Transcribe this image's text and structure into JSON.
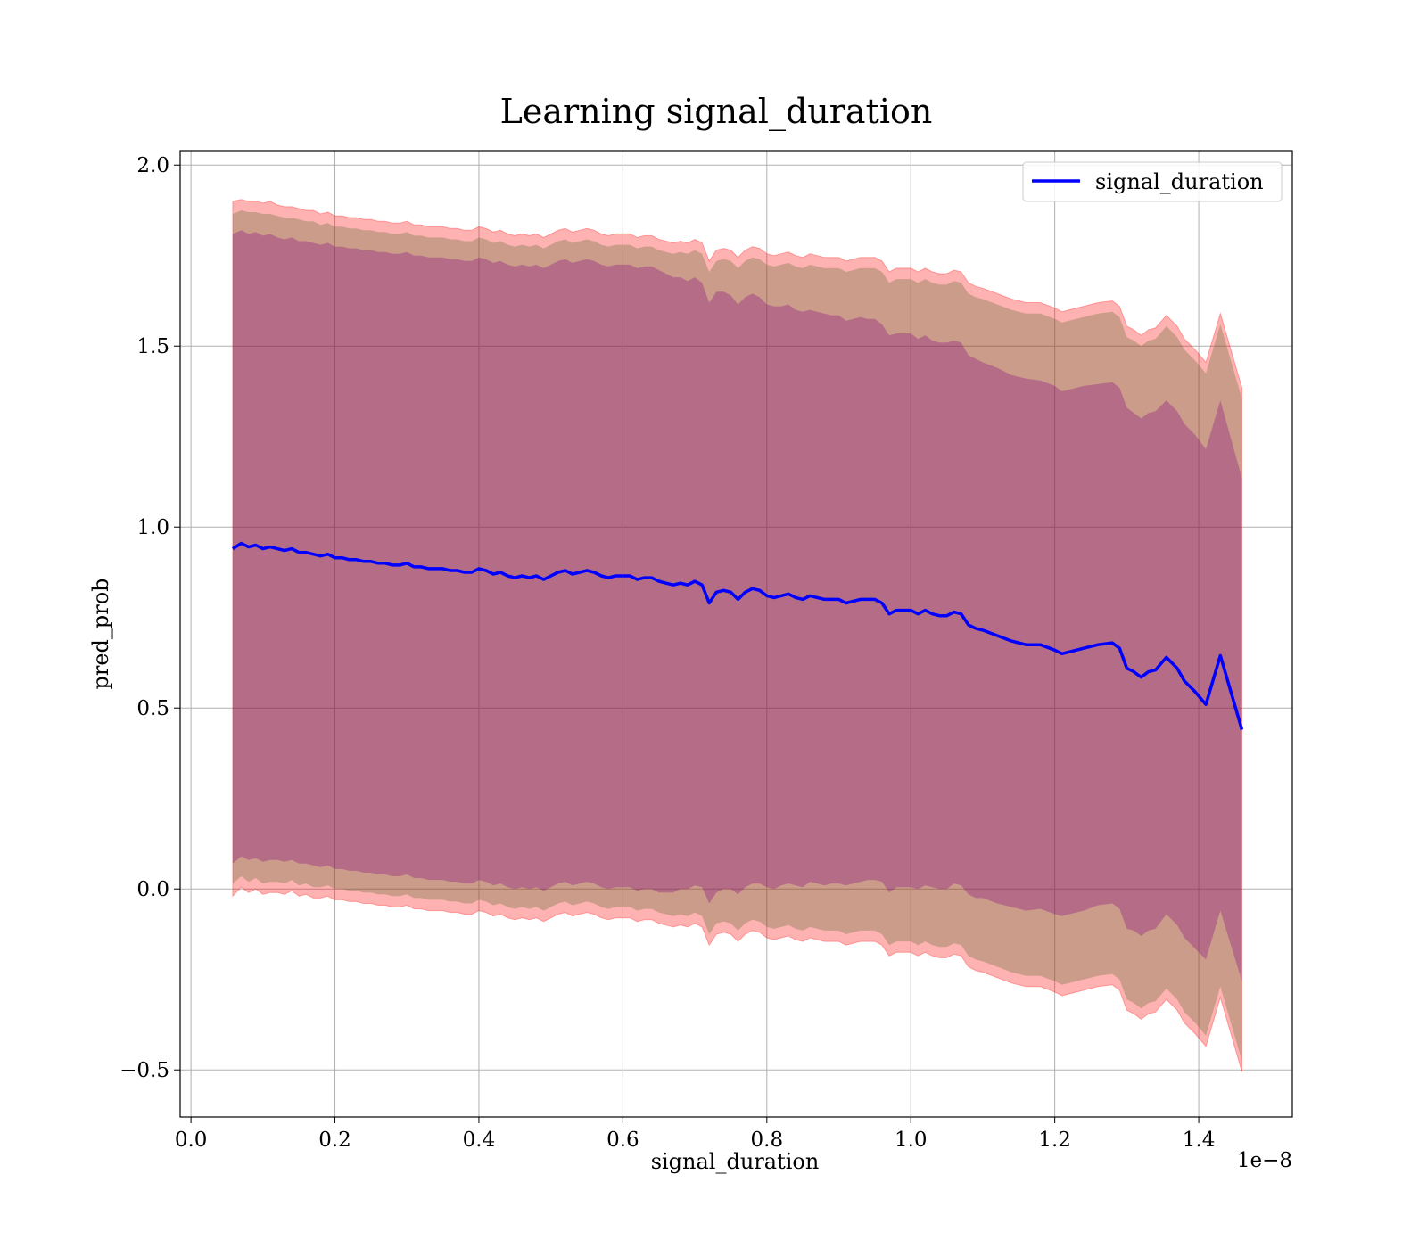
{
  "chart_data": {
    "type": "line",
    "title": "Learning signal_duration",
    "xlabel": "signal_duration",
    "ylabel": "pred_prob",
    "x_offset_text": "1e−8",
    "xlim": [
      -0.015,
      1.53
    ],
    "ylim": [
      -0.63,
      2.04
    ],
    "x_ticks": [
      0.0,
      0.2,
      0.4,
      0.6,
      0.8,
      1.0,
      1.2,
      1.4
    ],
    "x_tick_labels": [
      "0.0",
      "0.2",
      "0.4",
      "0.6",
      "0.8",
      "1.0",
      "1.2",
      "1.4"
    ],
    "y_ticks": [
      -0.5,
      0.0,
      0.5,
      1.0,
      1.5,
      2.0
    ],
    "y_tick_labels": [
      "−0.5",
      "0.0",
      "0.5",
      "1.0",
      "1.5",
      "2.0"
    ],
    "grid": true,
    "legend": {
      "position": "top-right",
      "entries": [
        "signal_duration"
      ]
    },
    "colors": {
      "line": "#0000ff",
      "band_outer": "#ff0000",
      "band_inner": "#556b2f",
      "band_core": "#800080"
    },
    "series": [
      {
        "name": "signal_duration",
        "x": [
          0.058,
          0.07,
          0.08,
          0.09,
          0.1,
          0.11,
          0.12,
          0.13,
          0.14,
          0.15,
          0.16,
          0.17,
          0.18,
          0.19,
          0.2,
          0.21,
          0.22,
          0.23,
          0.24,
          0.25,
          0.26,
          0.27,
          0.28,
          0.29,
          0.3,
          0.31,
          0.32,
          0.33,
          0.34,
          0.35,
          0.36,
          0.37,
          0.38,
          0.39,
          0.4,
          0.41,
          0.42,
          0.43,
          0.44,
          0.45,
          0.46,
          0.47,
          0.48,
          0.49,
          0.5,
          0.51,
          0.52,
          0.53,
          0.54,
          0.55,
          0.56,
          0.57,
          0.58,
          0.59,
          0.6,
          0.61,
          0.62,
          0.63,
          0.64,
          0.65,
          0.66,
          0.67,
          0.68,
          0.69,
          0.7,
          0.71,
          0.72,
          0.73,
          0.74,
          0.75,
          0.76,
          0.77,
          0.78,
          0.79,
          0.8,
          0.81,
          0.82,
          0.83,
          0.84,
          0.85,
          0.86,
          0.87,
          0.88,
          0.89,
          0.9,
          0.91,
          0.92,
          0.93,
          0.94,
          0.95,
          0.96,
          0.97,
          0.98,
          0.99,
          1.0,
          1.01,
          1.02,
          1.03,
          1.04,
          1.05,
          1.06,
          1.07,
          1.08,
          1.09,
          1.1,
          1.12,
          1.14,
          1.16,
          1.18,
          1.2,
          1.21,
          1.22,
          1.24,
          1.26,
          1.28,
          1.29,
          1.3,
          1.31,
          1.32,
          1.33,
          1.34,
          1.355,
          1.37,
          1.38,
          1.395,
          1.41,
          1.43,
          1.46
        ],
        "values": [
          0.94,
          0.955,
          0.945,
          0.95,
          0.94,
          0.945,
          0.94,
          0.935,
          0.94,
          0.93,
          0.93,
          0.925,
          0.92,
          0.925,
          0.915,
          0.915,
          0.91,
          0.91,
          0.905,
          0.905,
          0.9,
          0.9,
          0.895,
          0.895,
          0.9,
          0.89,
          0.89,
          0.885,
          0.885,
          0.885,
          0.88,
          0.88,
          0.875,
          0.875,
          0.885,
          0.88,
          0.87,
          0.875,
          0.865,
          0.86,
          0.865,
          0.86,
          0.865,
          0.855,
          0.865,
          0.875,
          0.88,
          0.87,
          0.875,
          0.88,
          0.875,
          0.865,
          0.86,
          0.865,
          0.865,
          0.865,
          0.855,
          0.86,
          0.86,
          0.85,
          0.845,
          0.84,
          0.845,
          0.84,
          0.85,
          0.84,
          0.79,
          0.82,
          0.825,
          0.82,
          0.8,
          0.82,
          0.83,
          0.825,
          0.81,
          0.805,
          0.81,
          0.815,
          0.805,
          0.8,
          0.81,
          0.805,
          0.8,
          0.8,
          0.8,
          0.79,
          0.795,
          0.8,
          0.8,
          0.8,
          0.79,
          0.76,
          0.77,
          0.77,
          0.77,
          0.76,
          0.77,
          0.76,
          0.755,
          0.755,
          0.765,
          0.76,
          0.73,
          0.72,
          0.715,
          0.7,
          0.685,
          0.675,
          0.675,
          0.66,
          0.65,
          0.655,
          0.665,
          0.675,
          0.68,
          0.665,
          0.61,
          0.6,
          0.585,
          0.6,
          0.605,
          0.64,
          0.61,
          0.575,
          0.545,
          0.51,
          0.645,
          0.44
        ],
        "band_outer_upper": [
          1.9,
          1.905,
          1.9,
          1.9,
          1.895,
          1.9,
          1.89,
          1.885,
          1.885,
          1.88,
          1.875,
          1.875,
          1.865,
          1.87,
          1.86,
          1.86,
          1.855,
          1.855,
          1.85,
          1.85,
          1.845,
          1.845,
          1.84,
          1.84,
          1.845,
          1.835,
          1.835,
          1.83,
          1.83,
          1.83,
          1.825,
          1.825,
          1.82,
          1.82,
          1.83,
          1.825,
          1.815,
          1.82,
          1.81,
          1.805,
          1.81,
          1.805,
          1.81,
          1.8,
          1.81,
          1.82,
          1.825,
          1.815,
          1.82,
          1.825,
          1.82,
          1.81,
          1.805,
          1.81,
          1.81,
          1.81,
          1.8,
          1.805,
          1.805,
          1.795,
          1.79,
          1.785,
          1.79,
          1.785,
          1.795,
          1.785,
          1.735,
          1.765,
          1.77,
          1.765,
          1.745,
          1.765,
          1.775,
          1.77,
          1.755,
          1.75,
          1.755,
          1.76,
          1.75,
          1.745,
          1.755,
          1.75,
          1.745,
          1.745,
          1.745,
          1.735,
          1.74,
          1.745,
          1.745,
          1.745,
          1.735,
          1.705,
          1.715,
          1.715,
          1.715,
          1.705,
          1.715,
          1.705,
          1.7,
          1.7,
          1.71,
          1.705,
          1.675,
          1.665,
          1.66,
          1.645,
          1.63,
          1.62,
          1.62,
          1.605,
          1.595,
          1.6,
          1.61,
          1.62,
          1.625,
          1.61,
          1.555,
          1.545,
          1.53,
          1.545,
          1.55,
          1.585,
          1.555,
          1.52,
          1.49,
          1.455,
          1.59,
          1.385
        ],
        "band_outer_lower": [
          -0.02,
          0.005,
          -0.01,
          0.0,
          -0.015,
          -0.01,
          -0.01,
          -0.015,
          -0.005,
          -0.02,
          -0.015,
          -0.025,
          -0.025,
          -0.02,
          -0.03,
          -0.03,
          -0.035,
          -0.035,
          -0.04,
          -0.04,
          -0.045,
          -0.045,
          -0.05,
          -0.05,
          -0.045,
          -0.055,
          -0.055,
          -0.06,
          -0.06,
          -0.06,
          -0.065,
          -0.065,
          -0.07,
          -0.07,
          -0.06,
          -0.065,
          -0.075,
          -0.07,
          -0.08,
          -0.085,
          -0.08,
          -0.085,
          -0.08,
          -0.09,
          -0.08,
          -0.07,
          -0.065,
          -0.075,
          -0.07,
          -0.065,
          -0.07,
          -0.08,
          -0.085,
          -0.08,
          -0.08,
          -0.08,
          -0.09,
          -0.085,
          -0.085,
          -0.095,
          -0.1,
          -0.105,
          -0.1,
          -0.105,
          -0.095,
          -0.105,
          -0.155,
          -0.125,
          -0.12,
          -0.125,
          -0.145,
          -0.125,
          -0.115,
          -0.12,
          -0.135,
          -0.14,
          -0.135,
          -0.13,
          -0.14,
          -0.145,
          -0.135,
          -0.14,
          -0.145,
          -0.145,
          -0.145,
          -0.155,
          -0.15,
          -0.145,
          -0.145,
          -0.145,
          -0.155,
          -0.185,
          -0.175,
          -0.175,
          -0.175,
          -0.185,
          -0.175,
          -0.185,
          -0.19,
          -0.19,
          -0.18,
          -0.185,
          -0.215,
          -0.225,
          -0.23,
          -0.245,
          -0.26,
          -0.27,
          -0.27,
          -0.285,
          -0.295,
          -0.29,
          -0.28,
          -0.27,
          -0.265,
          -0.28,
          -0.335,
          -0.345,
          -0.36,
          -0.345,
          -0.34,
          -0.305,
          -0.335,
          -0.37,
          -0.4,
          -0.435,
          -0.3,
          -0.505
        ],
        "band_inner_upper": [
          1.865,
          1.875,
          1.87,
          1.87,
          1.865,
          1.865,
          1.86,
          1.855,
          1.855,
          1.85,
          1.845,
          1.845,
          1.835,
          1.84,
          1.83,
          1.83,
          1.825,
          1.825,
          1.82,
          1.82,
          1.815,
          1.815,
          1.81,
          1.81,
          1.815,
          1.805,
          1.805,
          1.8,
          1.8,
          1.8,
          1.795,
          1.795,
          1.79,
          1.79,
          1.8,
          1.795,
          1.785,
          1.79,
          1.78,
          1.775,
          1.78,
          1.775,
          1.78,
          1.77,
          1.78,
          1.79,
          1.795,
          1.785,
          1.79,
          1.795,
          1.79,
          1.78,
          1.775,
          1.78,
          1.78,
          1.78,
          1.77,
          1.775,
          1.775,
          1.765,
          1.76,
          1.755,
          1.76,
          1.755,
          1.765,
          1.755,
          1.705,
          1.735,
          1.74,
          1.735,
          1.715,
          1.735,
          1.745,
          1.74,
          1.725,
          1.72,
          1.725,
          1.73,
          1.72,
          1.715,
          1.725,
          1.72,
          1.715,
          1.715,
          1.715,
          1.705,
          1.71,
          1.715,
          1.715,
          1.715,
          1.705,
          1.675,
          1.685,
          1.685,
          1.685,
          1.675,
          1.685,
          1.675,
          1.67,
          1.67,
          1.68,
          1.675,
          1.645,
          1.635,
          1.63,
          1.615,
          1.6,
          1.59,
          1.59,
          1.575,
          1.565,
          1.57,
          1.58,
          1.59,
          1.595,
          1.58,
          1.525,
          1.515,
          1.5,
          1.515,
          1.52,
          1.555,
          1.525,
          1.49,
          1.46,
          1.425,
          1.56,
          1.355
        ],
        "band_inner_lower": [
          0.015,
          0.035,
          0.02,
          0.03,
          0.015,
          0.02,
          0.02,
          0.015,
          0.025,
          0.01,
          0.015,
          0.005,
          0.005,
          0.01,
          0.0,
          0.0,
          -0.005,
          -0.005,
          -0.01,
          -0.01,
          -0.015,
          -0.015,
          -0.02,
          -0.02,
          -0.015,
          -0.025,
          -0.025,
          -0.03,
          -0.03,
          -0.03,
          -0.035,
          -0.035,
          -0.04,
          -0.04,
          -0.03,
          -0.035,
          -0.045,
          -0.04,
          -0.05,
          -0.055,
          -0.05,
          -0.055,
          -0.05,
          -0.06,
          -0.05,
          -0.04,
          -0.035,
          -0.045,
          -0.04,
          -0.035,
          -0.04,
          -0.05,
          -0.055,
          -0.05,
          -0.05,
          -0.05,
          -0.06,
          -0.055,
          -0.055,
          -0.065,
          -0.07,
          -0.075,
          -0.07,
          -0.075,
          -0.065,
          -0.075,
          -0.125,
          -0.095,
          -0.09,
          -0.095,
          -0.115,
          -0.095,
          -0.085,
          -0.09,
          -0.105,
          -0.11,
          -0.105,
          -0.1,
          -0.11,
          -0.115,
          -0.105,
          -0.11,
          -0.115,
          -0.115,
          -0.115,
          -0.125,
          -0.12,
          -0.115,
          -0.115,
          -0.115,
          -0.125,
          -0.155,
          -0.145,
          -0.145,
          -0.145,
          -0.155,
          -0.145,
          -0.155,
          -0.16,
          -0.16,
          -0.15,
          -0.155,
          -0.185,
          -0.195,
          -0.2,
          -0.215,
          -0.23,
          -0.24,
          -0.24,
          -0.255,
          -0.265,
          -0.26,
          -0.25,
          -0.24,
          -0.235,
          -0.25,
          -0.305,
          -0.315,
          -0.33,
          -0.315,
          -0.31,
          -0.275,
          -0.305,
          -0.34,
          -0.37,
          -0.405,
          -0.27,
          -0.475
        ],
        "band_core_upper": [
          1.81,
          1.82,
          1.81,
          1.815,
          1.805,
          1.81,
          1.8,
          1.795,
          1.8,
          1.79,
          1.79,
          1.785,
          1.78,
          1.785,
          1.775,
          1.775,
          1.77,
          1.77,
          1.765,
          1.765,
          1.76,
          1.76,
          1.755,
          1.755,
          1.76,
          1.75,
          1.75,
          1.745,
          1.745,
          1.745,
          1.74,
          1.74,
          1.735,
          1.735,
          1.745,
          1.74,
          1.73,
          1.735,
          1.725,
          1.72,
          1.725,
          1.72,
          1.725,
          1.715,
          1.725,
          1.735,
          1.74,
          1.73,
          1.735,
          1.74,
          1.735,
          1.725,
          1.72,
          1.725,
          1.725,
          1.725,
          1.715,
          1.72,
          1.72,
          1.71,
          1.7,
          1.69,
          1.69,
          1.68,
          1.69,
          1.675,
          1.62,
          1.65,
          1.65,
          1.64,
          1.615,
          1.635,
          1.645,
          1.635,
          1.615,
          1.61,
          1.61,
          1.615,
          1.6,
          1.595,
          1.6,
          1.595,
          1.59,
          1.585,
          1.585,
          1.57,
          1.575,
          1.58,
          1.575,
          1.575,
          1.56,
          1.53,
          1.535,
          1.535,
          1.535,
          1.52,
          1.53,
          1.515,
          1.51,
          1.51,
          1.515,
          1.51,
          1.475,
          1.465,
          1.455,
          1.44,
          1.42,
          1.41,
          1.405,
          1.39,
          1.375,
          1.38,
          1.39,
          1.395,
          1.4,
          1.385,
          1.33,
          1.315,
          1.3,
          1.315,
          1.32,
          1.35,
          1.32,
          1.285,
          1.255,
          1.215,
          1.35,
          1.135
        ],
        "band_core_lower": [
          0.07,
          0.09,
          0.08,
          0.085,
          0.075,
          0.08,
          0.08,
          0.075,
          0.08,
          0.07,
          0.07,
          0.065,
          0.06,
          0.065,
          0.055,
          0.055,
          0.05,
          0.05,
          0.045,
          0.045,
          0.04,
          0.04,
          0.035,
          0.035,
          0.04,
          0.03,
          0.03,
          0.025,
          0.025,
          0.025,
          0.02,
          0.02,
          0.015,
          0.015,
          0.025,
          0.02,
          0.01,
          0.015,
          0.005,
          0.0,
          0.005,
          0.0,
          0.005,
          -0.005,
          0.005,
          0.015,
          0.02,
          0.01,
          0.015,
          0.02,
          0.015,
          0.005,
          0.0,
          0.005,
          0.005,
          0.005,
          -0.005,
          0.0,
          0.0,
          -0.01,
          -0.01,
          -0.01,
          0.0,
          0.0,
          0.01,
          0.005,
          -0.04,
          -0.01,
          0.0,
          0.0,
          -0.015,
          0.005,
          0.015,
          0.015,
          0.005,
          0.0,
          0.01,
          0.015,
          0.01,
          0.005,
          0.02,
          0.015,
          0.01,
          0.015,
          0.015,
          0.01,
          0.015,
          0.02,
          0.025,
          0.025,
          0.02,
          -0.01,
          0.005,
          0.005,
          0.005,
          0.0,
          0.01,
          0.005,
          0.0,
          0.0,
          0.015,
          0.01,
          -0.015,
          -0.025,
          -0.025,
          -0.04,
          -0.05,
          -0.06,
          -0.055,
          -0.07,
          -0.075,
          -0.07,
          -0.06,
          -0.045,
          -0.04,
          -0.055,
          -0.11,
          -0.115,
          -0.13,
          -0.115,
          -0.11,
          -0.07,
          -0.1,
          -0.135,
          -0.165,
          -0.195,
          -0.06,
          -0.255
        ]
      }
    ]
  }
}
